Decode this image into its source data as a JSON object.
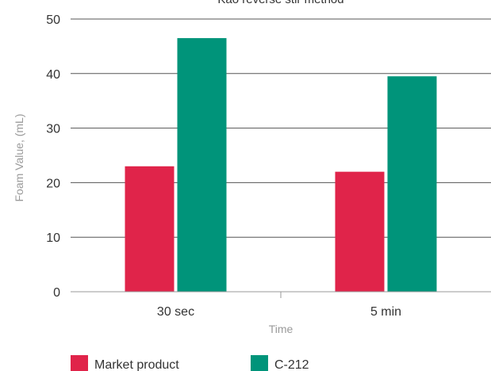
{
  "chart_data": {
    "type": "bar",
    "title": "Kao reverse stir method",
    "xlabel": "Time",
    "ylabel": "Foam Value, (mL)",
    "categories": [
      "30 sec",
      "5 min"
    ],
    "series": [
      {
        "name": "Market product",
        "values": [
          23,
          22
        ],
        "color": "#e0244a"
      },
      {
        "name": "C-212",
        "values": [
          46.5,
          39.5
        ],
        "color": "#00947a"
      }
    ],
    "ylim": [
      0,
      50
    ],
    "yticks": [
      0,
      10,
      20,
      30,
      40,
      50
    ],
    "grid": true,
    "legend_position": "bottom-left"
  }
}
